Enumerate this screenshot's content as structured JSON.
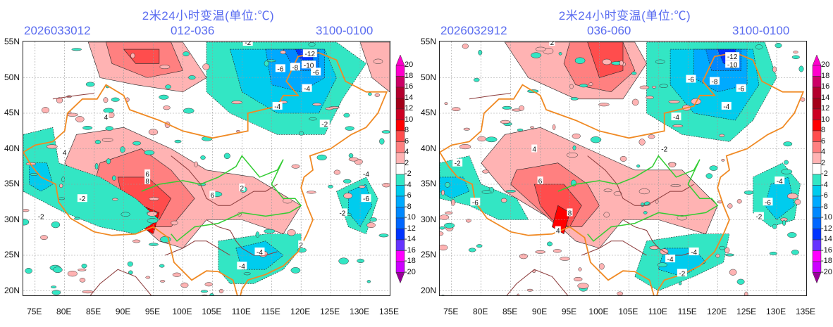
{
  "panels": [
    {
      "title": "2米24小时变温(单位:℃)",
      "init_time": "2026033012",
      "forecast_range": "012-036",
      "valid_period": "3100-0100",
      "lat_labels": [
        "55N",
        "50N",
        "45N",
        "40N",
        "35N",
        "30N",
        "25N",
        "20N"
      ],
      "lon_labels": [
        "75E",
        "80E",
        "85E",
        "90E",
        "95E",
        "100E",
        "105E",
        "110E",
        "115E",
        "120E",
        "125E",
        "130E",
        "135E"
      ],
      "contour_labels": [
        "-12",
        "-10",
        "-8",
        "-6",
        "-4",
        "-2",
        "2",
        "4",
        "6",
        "8"
      ]
    },
    {
      "title": "2米24小时变温(单位:℃)",
      "init_time": "2026032912",
      "forecast_range": "036-060",
      "valid_period": "3100-0100",
      "lat_labels": [
        "55N",
        "50N",
        "45N",
        "40N",
        "35N",
        "30N",
        "25N",
        "20N"
      ],
      "lon_labels": [
        "75E",
        "80E",
        "85E",
        "90E",
        "95E",
        "100E",
        "105E",
        "110E",
        "115E",
        "120E",
        "125E",
        "130E",
        "135E"
      ],
      "contour_labels": [
        "-12",
        "-10",
        "-8",
        "-6",
        "-4",
        "-2",
        "2",
        "4",
        "6",
        "8"
      ]
    }
  ],
  "legend": {
    "labels": [
      "20",
      "18",
      "16",
      "14",
      "12",
      "10",
      "8",
      "6",
      "4",
      "2",
      "-2",
      "-4",
      "-6",
      "-8",
      "-10",
      "-12",
      "-14",
      "-16",
      "-18",
      "-20"
    ],
    "colors": [
      "#ff00cc",
      "#cc0066",
      "#b3002d",
      "#a30019",
      "#cc0022",
      "#ff0000",
      "#ff4d4d",
      "#ff8080",
      "#ffb3b3",
      "#ffffff",
      "#33e6c4",
      "#00ccee",
      "#00aaff",
      "#0088ff",
      "#0066ff",
      "#0033ff",
      "#6633ff",
      "#ff00ff",
      "#cc00ff",
      "#990099"
    ],
    "top_arrow_color": "#ff00cc",
    "bottom_arrow_color": "#990099"
  },
  "boundary_colors": {
    "national": "#f08a24",
    "province": "#8b3a3a",
    "river": "#33cc33"
  }
}
